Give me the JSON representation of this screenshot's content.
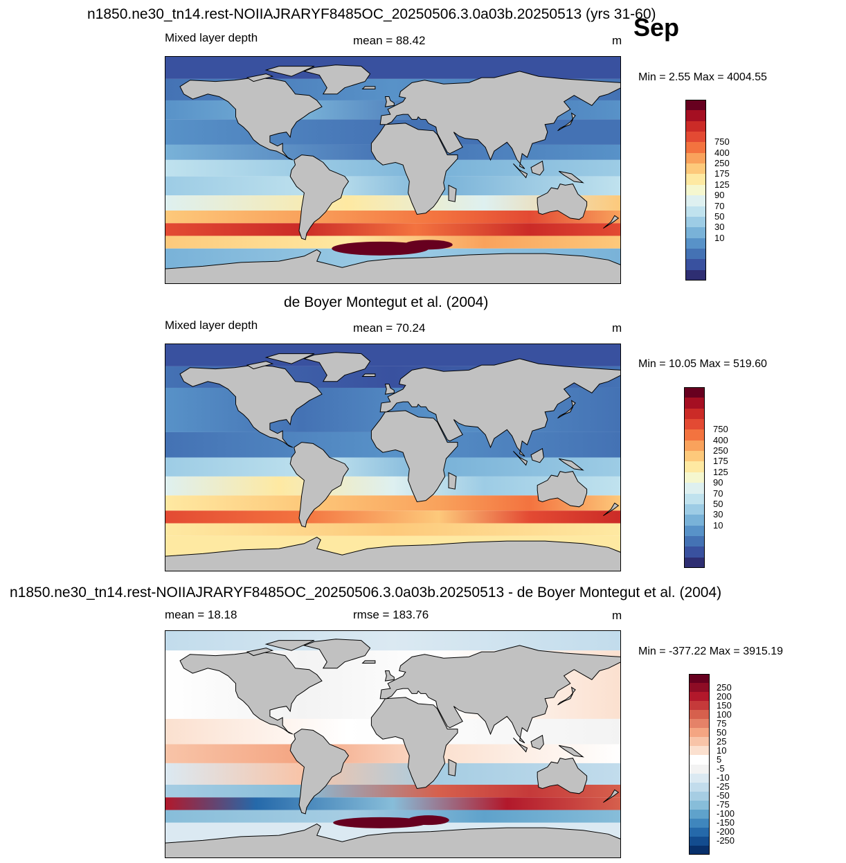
{
  "header": {
    "title": "n1850.ne30_tn14.rest-NOIIAJRARYF8485OC_20250506.3.0a03b.20250513 (yrs 31-60)",
    "month": "Sep"
  },
  "panels": [
    {
      "id": "model",
      "title": "",
      "left_label": "Mixed layer depth",
      "center_label": "mean =  88.42",
      "units": "m",
      "minmax": "Min =   2.55 Max = 4004.55",
      "colorbar": {
        "labels": [
          "750",
          "400",
          "250",
          "175",
          "125",
          "90",
          "70",
          "50",
          "30",
          "10"
        ],
        "colors": [
          "#67001f",
          "#a50f22",
          "#cb2b27",
          "#e34a33",
          "#f3733f",
          "#f9a25c",
          "#fdc97b",
          "#fee9a2",
          "#f5f7cf",
          "#def0f0",
          "#c0e2ee",
          "#9dcce5",
          "#79b2d8",
          "#5892c8",
          "#4472b4",
          "#39519f",
          "#2e2e72"
        ]
      }
    },
    {
      "id": "obs",
      "title": "de Boyer Montegut et al. (2004)",
      "left_label": "Mixed layer depth",
      "center_label": "mean =  70.24",
      "units": "m",
      "minmax": "Min =  10.05 Max = 519.60",
      "colorbar": {
        "labels": [
          "750",
          "400",
          "250",
          "175",
          "125",
          "90",
          "70",
          "50",
          "30",
          "10"
        ],
        "colors": [
          "#67001f",
          "#a50f22",
          "#cb2b27",
          "#e34a33",
          "#f3733f",
          "#f9a25c",
          "#fdc97b",
          "#fee9a2",
          "#f5f7cf",
          "#def0f0",
          "#c0e2ee",
          "#9dcce5",
          "#79b2d8",
          "#5892c8",
          "#4472b4",
          "#39519f",
          "#2e2e72"
        ]
      }
    },
    {
      "id": "diff",
      "title": "n1850.ne30_tn14.rest-NOIIAJRARYF8485OC_20250506.3.0a03b.20250513 - de Boyer Montegut et al. (2004)",
      "left_label": "mean =  18.18",
      "center_label": "rmse = 183.76",
      "units": "m",
      "minmax": "Min = -377.22 Max = 3915.19",
      "colorbar": {
        "labels": [
          "250",
          "200",
          "150",
          "100",
          "75",
          "50",
          "25",
          "10",
          "5",
          "-5",
          "-10",
          "-25",
          "-50",
          "-75",
          "-100",
          "-150",
          "-200",
          "-250"
        ],
        "colors": [
          "#67001f",
          "#8e0c25",
          "#b2182b",
          "#c53a3a",
          "#d6604d",
          "#e58268",
          "#f4a582",
          "#f8c4a8",
          "#fbe0cf",
          "#ffffff",
          "#f3f3f3",
          "#dbe9f2",
          "#c2dcec",
          "#a6cde3",
          "#87bdd9",
          "#5fa2cb",
          "#3f86bd",
          "#2569aa",
          "#134c8f",
          "#08306b"
        ]
      }
    }
  ],
  "colors": {
    "land": "#c1c1c1",
    "coast": "#000000"
  }
}
